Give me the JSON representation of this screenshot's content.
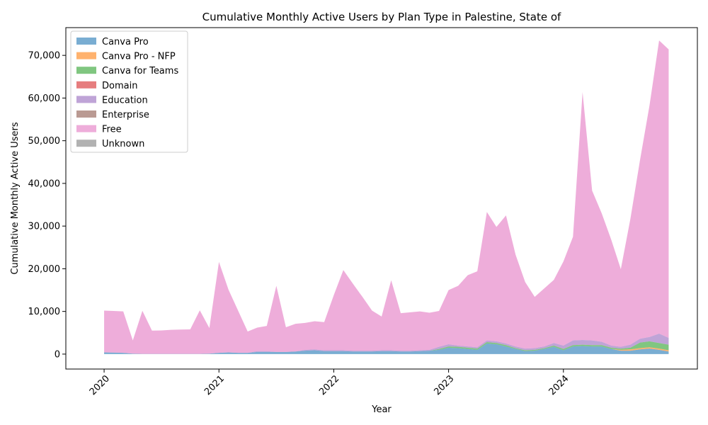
{
  "chart_data": {
    "type": "area",
    "stacked": true,
    "title": "Cumulative Monthly Active Users by Plan Type in Palestine, State of",
    "xlabel": "Year",
    "ylabel": "Cumulative Monthly Active Users",
    "x_ticks": [
      "2020",
      "2021",
      "2022",
      "2023",
      "2024"
    ],
    "y_ticks": [
      "0",
      "10,000",
      "20,000",
      "30,000",
      "40,000",
      "50,000",
      "60,000",
      "70,000"
    ],
    "ylim": [
      -3500,
      76500
    ],
    "xlim": [
      "2019-09",
      "2025-03"
    ],
    "legend_position": "upper-left",
    "grid": false,
    "months": [
      "2020-01",
      "2020-02",
      "2020-03",
      "2020-04",
      "2020-05",
      "2020-06",
      "2020-07",
      "2020-08",
      "2020-09",
      "2020-10",
      "2020-11",
      "2020-12",
      "2021-01",
      "2021-02",
      "2021-03",
      "2021-04",
      "2021-05",
      "2021-06",
      "2021-07",
      "2021-08",
      "2021-09",
      "2021-10",
      "2021-11",
      "2021-12",
      "2022-01",
      "2022-02",
      "2022-03",
      "2022-04",
      "2022-05",
      "2022-06",
      "2022-07",
      "2022-08",
      "2022-09",
      "2022-10",
      "2022-11",
      "2022-12",
      "2023-01",
      "2023-02",
      "2023-03",
      "2023-04",
      "2023-05",
      "2023-06",
      "2023-07",
      "2023-08",
      "2023-09",
      "2023-10",
      "2023-11",
      "2023-12",
      "2024-01",
      "2024-02",
      "2024-03",
      "2024-04",
      "2024-05",
      "2024-06",
      "2024-07",
      "2024-08",
      "2024-09",
      "2024-10",
      "2024-11",
      "2024-12"
    ],
    "series": [
      {
        "name": "Canva Pro",
        "color": "#1f77b4",
        "values": [
          400,
          350,
          300,
          100,
          50,
          50,
          50,
          50,
          50,
          50,
          50,
          100,
          300,
          400,
          300,
          300,
          500,
          500,
          500,
          500,
          600,
          800,
          900,
          700,
          700,
          700,
          600,
          600,
          600,
          700,
          700,
          600,
          600,
          700,
          800,
          1000,
          1500,
          1400,
          1200,
          1000,
          2500,
          2300,
          1800,
          1200,
          700,
          800,
          1200,
          1700,
          900,
          1800,
          1900,
          1800,
          1800,
          1200,
          800,
          800,
          1100,
          1300,
          1000,
          600
        ]
      },
      {
        "name": "Canva Pro - NFP",
        "color": "#ff7f0e",
        "values": [
          0,
          0,
          0,
          0,
          0,
          0,
          0,
          0,
          0,
          0,
          0,
          0,
          0,
          0,
          0,
          0,
          0,
          0,
          0,
          0,
          0,
          0,
          0,
          0,
          0,
          0,
          0,
          0,
          0,
          0,
          0,
          0,
          0,
          0,
          0,
          0,
          0,
          0,
          0,
          0,
          0,
          0,
          0,
          0,
          0,
          0,
          0,
          0,
          0,
          0,
          0,
          0,
          0,
          0,
          200,
          300,
          300,
          300,
          300,
          300
        ]
      },
      {
        "name": "Canva for Teams",
        "color": "#2ca02c",
        "values": [
          0,
          0,
          0,
          0,
          0,
          0,
          0,
          0,
          0,
          0,
          0,
          0,
          0,
          0,
          0,
          0,
          0,
          0,
          0,
          0,
          0,
          0,
          0,
          0,
          0,
          0,
          0,
          0,
          0,
          0,
          0,
          0,
          0,
          0,
          0,
          200,
          300,
          300,
          300,
          300,
          300,
          300,
          300,
          200,
          200,
          200,
          200,
          300,
          300,
          300,
          300,
          300,
          300,
          300,
          300,
          400,
          1300,
          1400,
          1300,
          1300
        ]
      },
      {
        "name": "Domain",
        "color": "#d62728",
        "values": [
          0,
          0,
          0,
          0,
          0,
          0,
          0,
          0,
          0,
          0,
          0,
          0,
          0,
          0,
          0,
          0,
          0,
          0,
          0,
          0,
          0,
          0,
          0,
          0,
          0,
          0,
          0,
          0,
          0,
          0,
          0,
          0,
          0,
          0,
          0,
          0,
          0,
          0,
          0,
          0,
          0,
          0,
          0,
          0,
          0,
          0,
          0,
          0,
          0,
          0,
          0,
          0,
          0,
          0,
          0,
          0,
          0,
          0,
          0,
          0
        ]
      },
      {
        "name": "Education",
        "color": "#9467bd",
        "values": [
          0,
          0,
          0,
          0,
          0,
          0,
          0,
          0,
          0,
          0,
          0,
          0,
          0,
          0,
          0,
          0,
          200,
          200,
          0,
          0,
          0,
          200,
          200,
          200,
          200,
          200,
          200,
          200,
          200,
          200,
          200,
          200,
          200,
          200,
          200,
          500,
          500,
          300,
          300,
          300,
          400,
          400,
          400,
          400,
          400,
          400,
          400,
          600,
          800,
          1100,
          1100,
          1100,
          800,
          500,
          400,
          700,
          900,
          1000,
          2200,
          1600
        ]
      },
      {
        "name": "Enterprise",
        "color": "#8c564b",
        "values": [
          0,
          0,
          0,
          0,
          0,
          0,
          0,
          0,
          0,
          0,
          0,
          0,
          0,
          0,
          0,
          0,
          0,
          0,
          0,
          0,
          0,
          0,
          0,
          0,
          0,
          0,
          0,
          0,
          0,
          0,
          0,
          0,
          0,
          0,
          0,
          0,
          0,
          0,
          0,
          0,
          0,
          0,
          0,
          0,
          0,
          0,
          0,
          0,
          0,
          0,
          0,
          0,
          0,
          0,
          0,
          0,
          0,
          0,
          0,
          0
        ]
      },
      {
        "name": "Free",
        "color": "#e377c2",
        "values": [
          9800,
          9750,
          9700,
          3100,
          10100,
          5450,
          5500,
          5650,
          5700,
          5750,
          10200,
          6000,
          21300,
          14700,
          9900,
          5000,
          5500,
          5900,
          15500,
          5800,
          6500,
          6300,
          6600,
          6600,
          12900,
          18800,
          15700,
          12600,
          9400,
          7900,
          16400,
          8800,
          9000,
          9100,
          8700,
          8400,
          12700,
          14000,
          16700,
          17800,
          30100,
          26800,
          30000,
          21500,
          15600,
          12000,
          13600,
          14800,
          19700,
          24300,
          58100,
          35100,
          30100,
          24800,
          18200,
          29500,
          41800,
          54300,
          68700,
          67600
        ]
      },
      {
        "name": "Unknown",
        "color": "#7f7f7f",
        "values": [
          0,
          0,
          0,
          0,
          0,
          0,
          0,
          0,
          0,
          0,
          0,
          0,
          0,
          0,
          0,
          0,
          0,
          0,
          0,
          0,
          0,
          0,
          0,
          0,
          0,
          0,
          0,
          0,
          0,
          0,
          0,
          0,
          0,
          0,
          0,
          0,
          0,
          0,
          0,
          0,
          0,
          0,
          0,
          0,
          0,
          0,
          0,
          0,
          0,
          0,
          0,
          0,
          0,
          0,
          0,
          0,
          0,
          0,
          0,
          0
        ]
      }
    ]
  }
}
